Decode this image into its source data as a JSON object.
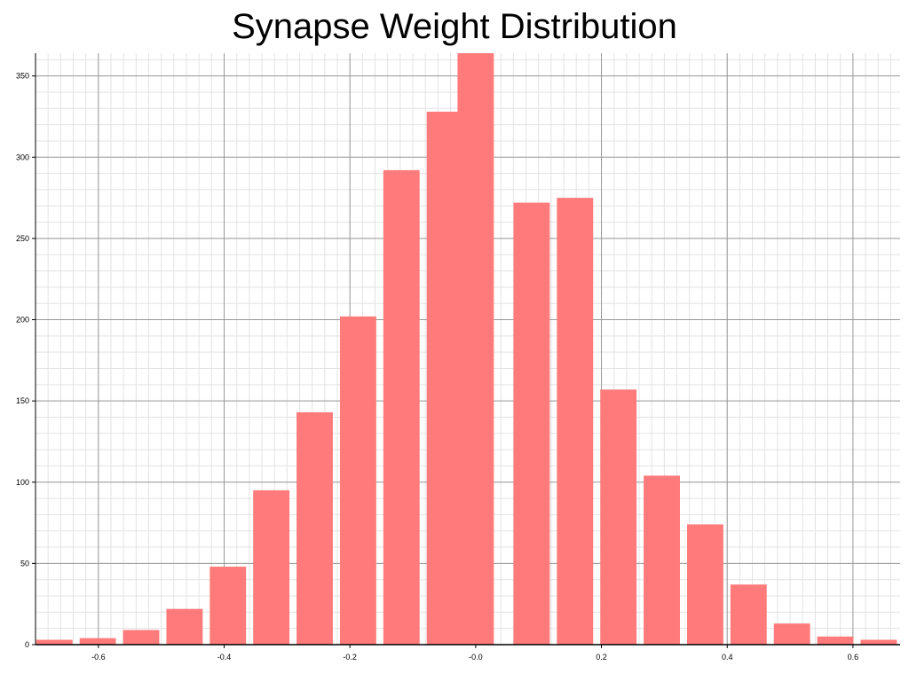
{
  "chart_data": {
    "type": "bar",
    "title": "Synapse Weight Distribution",
    "xlabel": "",
    "ylabel": "",
    "x_ticks": [
      "-0.6",
      "-0.4",
      "-0.2",
      "-0.0",
      "0.2",
      "0.4",
      "0.6"
    ],
    "y_ticks": [
      "0",
      "50",
      "100",
      "150",
      "200",
      "250",
      "300",
      "350"
    ],
    "xlim": [
      -0.7,
      0.675
    ],
    "ylim": [
      0,
      364
    ],
    "bin_width": 0.069,
    "bins": [
      {
        "x": -0.67,
        "value": 3
      },
      {
        "x": -0.601,
        "value": 4
      },
      {
        "x": -0.532,
        "value": 9
      },
      {
        "x": -0.463,
        "value": 22
      },
      {
        "x": -0.394,
        "value": 48
      },
      {
        "x": -0.325,
        "value": 95
      },
      {
        "x": -0.256,
        "value": 143
      },
      {
        "x": -0.187,
        "value": 202
      },
      {
        "x": -0.118,
        "value": 292
      },
      {
        "x": -0.049,
        "value": 328
      },
      {
        "x": 0.0,
        "value": 364
      },
      {
        "x": 0.089,
        "value": 272
      },
      {
        "x": 0.158,
        "value": 275
      },
      {
        "x": 0.227,
        "value": 157
      },
      {
        "x": 0.296,
        "value": 104
      },
      {
        "x": 0.365,
        "value": 74
      },
      {
        "x": 0.434,
        "value": 37
      },
      {
        "x": 0.503,
        "value": 13
      },
      {
        "x": 0.572,
        "value": 5
      },
      {
        "x": 0.641,
        "value": 3
      }
    ],
    "bar_color": "#ff7b7b",
    "grid": true,
    "legend": "none"
  }
}
